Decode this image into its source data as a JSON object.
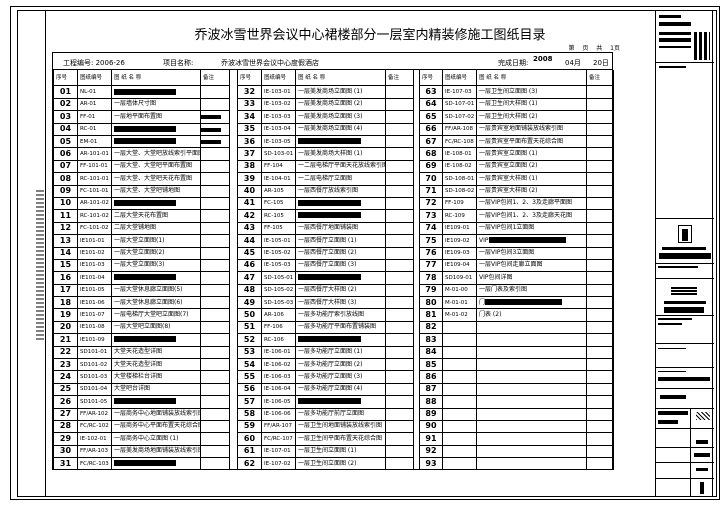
{
  "title": "乔波冰雪世界会议中心裙楼部分一层室内精装修施工图纸目录",
  "page_info": "第 页 共 1页",
  "info": {
    "project_no": "工程编号: 2006-26",
    "project_name_label": "项目名称:",
    "project_name": "乔波冰雪世界会议中心度假酒店",
    "date_label": "完成日期:",
    "year": "2008",
    "month": "04月",
    "day": "20日"
  },
  "headers": {
    "no": "序号",
    "code": "图纸编号",
    "name": "图  纸  名  称",
    "remark": "备注"
  },
  "columns": [
    [
      [
        "01",
        "NL-01",
        ""
      ],
      [
        "02",
        "AR-01",
        "一层墙体尺寸图"
      ],
      [
        "03",
        "FF-01",
        "一层地平面布置图"
      ],
      [
        "04",
        "RC-01",
        ""
      ],
      [
        "05",
        "EM-01",
        ""
      ],
      [
        "06",
        "AR-101-01",
        "一层大堂、大堂吧放线索引平面图"
      ],
      [
        "07",
        "FF-101-01",
        "一层大堂、大堂吧平面布置图"
      ],
      [
        "08",
        "RC-101-01",
        "一层大堂、大堂吧天花布置图"
      ],
      [
        "09",
        "FC-101-01",
        "一层大堂、大堂吧铺地图"
      ],
      [
        "10",
        "AR-101-02",
        ""
      ],
      [
        "11",
        "RC-101-02",
        "二层大堂天花布置图"
      ],
      [
        "12",
        "FC-101-02",
        "二层大堂铺地图"
      ],
      [
        "13",
        "IE101-01",
        "一层大堂立面图(1)"
      ],
      [
        "14",
        "IE101-02",
        "一层大堂立面图(2)"
      ],
      [
        "15",
        "IE101-03",
        "一层大堂立面图(3)"
      ],
      [
        "16",
        "IE101-04",
        ""
      ],
      [
        "17",
        "IE101-05",
        "一层大堂休息廊立面图(5)"
      ],
      [
        "18",
        "IE101-06",
        "一层大堂休息廊立面图(6)"
      ],
      [
        "19",
        "IE101-07",
        "一层电梯厅大堂吧立面图(7)"
      ],
      [
        "20",
        "IE101-08",
        "一层大堂吧立面图(8)"
      ],
      [
        "21",
        "IE101-09",
        ""
      ],
      [
        "22",
        "SD101-01",
        "大堂天花造型详图"
      ],
      [
        "23",
        "SD101-02",
        "大堂天花造型详图"
      ],
      [
        "24",
        "SD101-03",
        "大堂楼梯栏台详图"
      ],
      [
        "25",
        "SD101-04",
        "大堂吧台详图"
      ],
      [
        "26",
        "SD101-05",
        ""
      ],
      [
        "27",
        "FF/AR-102",
        "一层商务中心地面铺装放线索引图"
      ],
      [
        "28",
        "FC/RC-102",
        "一层商务中心平面布置天花综合图"
      ],
      [
        "29",
        "IE-102-01",
        "一层商务中心立面图 (1)"
      ],
      [
        "30",
        "FF/AR-103",
        "一层美发商场地面铺装放线索引图"
      ],
      [
        "31",
        "FC/RC-103",
        ""
      ]
    ],
    [
      [
        "32",
        "IE-103-01",
        "一层美发商场立面图 (1)"
      ],
      [
        "33",
        "IE-103-02",
        "一层美发商场立面图 (2)"
      ],
      [
        "34",
        "IE-103-03",
        "一层美发商场立面图 (3)"
      ],
      [
        "35",
        "IE-103-04",
        "一层美发商场立面图 (4)"
      ],
      [
        "36",
        "IE-103-05",
        ""
      ],
      [
        "37",
        "SD-103-01",
        "一层美发商场大样图 (1)"
      ],
      [
        "38",
        "FF-104",
        "一二层电梯厅平面天花放线索引图"
      ],
      [
        "39",
        "IE-104-01",
        "一二层电梯厅立面图"
      ],
      [
        "40",
        "AR-105",
        "一层西餐厅放线索引图"
      ],
      [
        "41",
        "FC-105",
        ""
      ],
      [
        "42",
        "RC-105",
        ""
      ],
      [
        "43",
        "FF-105",
        "一层西餐厅地面铺装图"
      ],
      [
        "44",
        "IE-105-01",
        "一层西餐厅立面图 (1)"
      ],
      [
        "45",
        "IE-105-02",
        "一层西餐厅立面图 (2)"
      ],
      [
        "46",
        "IE-105-03",
        "一层西餐厅立面图 (3)"
      ],
      [
        "47",
        "SD-105-01",
        ""
      ],
      [
        "48",
        "SD-105-02",
        "一层西餐厅大样图 (2)"
      ],
      [
        "49",
        "SD-105-03",
        "一层西餐厅大样图 (3)"
      ],
      [
        "50",
        "AR-106",
        "一层多功能厅索引放线图"
      ],
      [
        "51",
        "FF-106",
        "一层多功能厅平面布置铺装图"
      ],
      [
        "52",
        "RC-106",
        ""
      ],
      [
        "53",
        "IE-106-01",
        "一层多功能厅立面图 (1)"
      ],
      [
        "54",
        "IE-106-02",
        "一层多功能厅立面图 (2)"
      ],
      [
        "55",
        "IE-106-03",
        "一层多功能厅立面图 (3)"
      ],
      [
        "56",
        "IE-106-04",
        "一层多功能厅立面图 (4)"
      ],
      [
        "57",
        "IE-106-05",
        ""
      ],
      [
        "58",
        "IE-106-06",
        "一层多功能厅前厅立面图"
      ],
      [
        "59",
        "FF/AR-107",
        "一层卫生间地面铺装放线索引图"
      ],
      [
        "60",
        "FC/RC-107",
        "一层卫生间平面布置天花综合图"
      ],
      [
        "61",
        "IE-107-01",
        "一层卫生间立面图 (1)"
      ],
      [
        "62",
        "IE-107-02",
        "一层卫生间立面图 (2)"
      ]
    ],
    [
      [
        "63",
        "IE-107-03",
        "一层卫生间立面图 (3)"
      ],
      [
        "64",
        "SD-107-01",
        "一层卫生间大样图 (1)"
      ],
      [
        "65",
        "SD-107-02",
        "一层卫生间大样图 (2)"
      ],
      [
        "66",
        "FF/AR-108",
        "一层贵宾室地面铺装放线索引图"
      ],
      [
        "67",
        "FC/RC-108",
        "一层贵宾室平面布置天花综合图"
      ],
      [
        "68",
        "IE-108-01",
        "一层贵宾室立面图 (1)"
      ],
      [
        "69",
        "IE-108-02",
        "一层贵宾室立面图 (2)"
      ],
      [
        "70",
        "SD-108-01",
        "一层贵宾室大样图 (1)"
      ],
      [
        "71",
        "SD-108-02",
        "一层贵宾室大样图 (2)"
      ],
      [
        "72",
        "FF-109",
        "一层VIP包间1、2、3及走廊平面图"
      ],
      [
        "73",
        "RC-109",
        "一层VIP包间1、2、3及走廊天花图"
      ],
      [
        "74",
        "IE109-01",
        "一层VIP包间1立面图"
      ],
      [
        "75",
        "IE109-02",
        "VIP"
      ],
      [
        "76",
        "IE109-03",
        "一层VIP包间3立面图"
      ],
      [
        "77",
        "IE109-04",
        "一层VIP包间走廊立面图"
      ],
      [
        "78",
        "SD109-01",
        "VIP包间详图"
      ],
      [
        "79",
        "M-01-00",
        "一层门表及索引图"
      ],
      [
        "80",
        "M-01-01",
        "门"
      ],
      [
        "81",
        "M-01-02",
        "门表 (2)"
      ],
      [
        "82",
        "",
        ""
      ],
      [
        "83",
        "",
        ""
      ],
      [
        "84",
        "",
        ""
      ],
      [
        "85",
        "",
        ""
      ],
      [
        "86",
        "",
        ""
      ],
      [
        "87",
        "",
        ""
      ],
      [
        "88",
        "",
        ""
      ],
      [
        "89",
        "",
        ""
      ],
      [
        "90",
        "",
        ""
      ],
      [
        "91",
        "",
        ""
      ],
      [
        "92",
        "",
        ""
      ],
      [
        "93",
        "",
        ""
      ]
    ]
  ],
  "redacted_rows": [
    "01",
    "04",
    "05",
    "10",
    "16",
    "21",
    "26",
    "31",
    "36",
    "41",
    "42",
    "47",
    "52",
    "57",
    "75",
    "80"
  ],
  "remark_bars": [
    "03",
    "04",
    "05"
  ]
}
